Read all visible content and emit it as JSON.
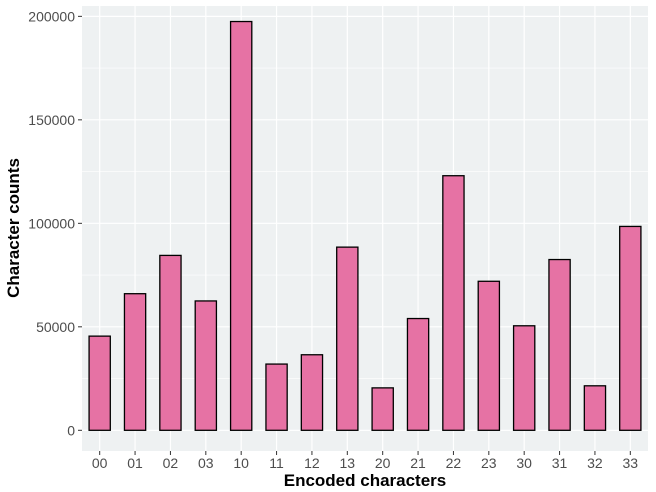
{
  "chart_data": {
    "type": "bar",
    "title": "",
    "xlabel": "Encoded characters",
    "ylabel": "Character counts",
    "categories": [
      "00",
      "01",
      "02",
      "03",
      "10",
      "11",
      "12",
      "13",
      "20",
      "21",
      "22",
      "23",
      "30",
      "31",
      "32",
      "33"
    ],
    "values": [
      45500,
      66000,
      84500,
      62500,
      197500,
      32000,
      36500,
      88500,
      20500,
      54000,
      123000,
      72000,
      50500,
      82500,
      21500,
      98500
    ],
    "ylim": [
      -10000,
      205000
    ],
    "yticks": [
      0,
      50000,
      100000,
      150000,
      200000
    ],
    "ytick_labels": [
      "0",
      "50000",
      "100000",
      "150000",
      "200000"
    ],
    "grid": true,
    "colors": {
      "bar_fill": "#e672a4",
      "bar_stroke": "#000000",
      "panel_bg": "#eef1f2",
      "grid": "#ffffff"
    }
  }
}
